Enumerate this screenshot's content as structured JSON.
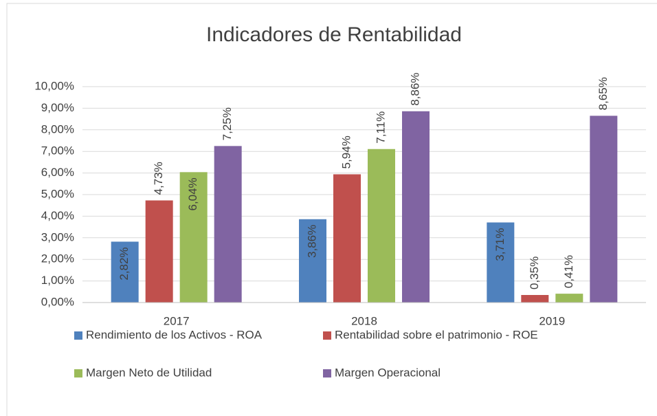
{
  "chart_data": {
    "type": "bar",
    "title": "Indicadores de Rentabilidad",
    "categories": [
      "2017",
      "2018",
      "2019"
    ],
    "series": [
      {
        "name": "Rendimiento de los Activos - ROA",
        "color": "#4f81bd",
        "values": [
          2.82,
          3.86,
          3.71
        ],
        "value_labels": [
          "2,82%",
          "3,86%",
          "3,71%"
        ]
      },
      {
        "name": "Rentabilidad sobre el patrimonio - ROE",
        "color": "#c0504d",
        "values": [
          4.73,
          5.94,
          0.35
        ],
        "value_labels": [
          "4,73%",
          "5,94%",
          "0,35%"
        ]
      },
      {
        "name": "Margen Neto de Utilidad",
        "color": "#9bbb59",
        "values": [
          6.04,
          7.11,
          0.41
        ],
        "value_labels": [
          "6,04%",
          "7,11%",
          "0,41%"
        ]
      },
      {
        "name": "Margen Operacional",
        "color": "#8064a2",
        "values": [
          7.25,
          8.86,
          8.65
        ],
        "value_labels": [
          "7,25%",
          "8,86%",
          "8,65%"
        ]
      }
    ],
    "ylim": [
      0,
      10
    ],
    "yticks": [
      {
        "value": 0,
        "label": "0,00%"
      },
      {
        "value": 1,
        "label": "1,00%"
      },
      {
        "value": 2,
        "label": "2,00%"
      },
      {
        "value": 3,
        "label": "3,00%"
      },
      {
        "value": 4,
        "label": "4,00%"
      },
      {
        "value": 5,
        "label": "5,00%"
      },
      {
        "value": 6,
        "label": "6,00%"
      },
      {
        "value": 7,
        "label": "7,00%"
      },
      {
        "value": 8,
        "label": "8,00%"
      },
      {
        "value": 9,
        "label": "9,00%"
      },
      {
        "value": 10,
        "label": "10,00%"
      }
    ],
    "grid": true,
    "legend": "bottom"
  }
}
